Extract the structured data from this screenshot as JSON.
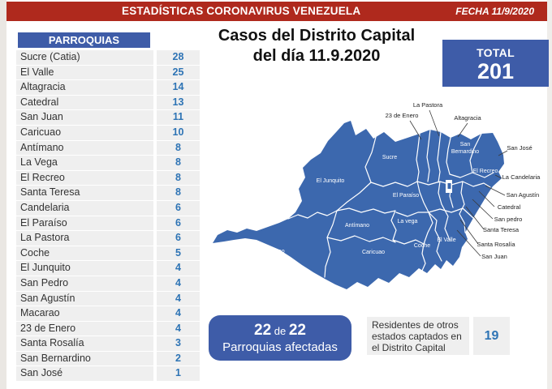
{
  "header": {
    "title": "ESTADÍSTICAS CORONAVIRUS VENEZUELA",
    "date": "FECHA 11/9/2020"
  },
  "table": {
    "header": "PARROQUIAS",
    "rows": [
      {
        "name": "Sucre (Catia)",
        "value": "28"
      },
      {
        "name": "El Valle",
        "value": "25"
      },
      {
        "name": "Altagracia",
        "value": "14"
      },
      {
        "name": "Catedral",
        "value": "13"
      },
      {
        "name": "San Juan",
        "value": "11"
      },
      {
        "name": "Caricuao",
        "value": "10"
      },
      {
        "name": "Antímano",
        "value": "8"
      },
      {
        "name": "La Vega",
        "value": "8"
      },
      {
        "name": "El Recreo",
        "value": "8"
      },
      {
        "name": "Santa Teresa",
        "value": "8"
      },
      {
        "name": "Candelaria",
        "value": "6"
      },
      {
        "name": "El Paraíso",
        "value": "6"
      },
      {
        "name": "La Pastora",
        "value": "6"
      },
      {
        "name": "Coche",
        "value": "5"
      },
      {
        "name": "El Junquito",
        "value": "4"
      },
      {
        "name": "San Pedro",
        "value": "4"
      },
      {
        "name": "San Agustín",
        "value": "4"
      },
      {
        "name": "Macarao",
        "value": "4"
      },
      {
        "name": "23 de Enero",
        "value": "4"
      },
      {
        "name": "Santa Rosalía",
        "value": "3"
      },
      {
        "name": "San Bernardino",
        "value": "2"
      },
      {
        "name": "San José",
        "value": "1"
      }
    ]
  },
  "main": {
    "title_line1": "Casos del Distrito Capital",
    "title_line2": "del día 11.9.2020",
    "total_label": "TOTAL",
    "total_value": "201"
  },
  "map": {
    "inside_labels": [
      "Sucre",
      "El Junquito",
      "El Paraíso",
      "Antímano",
      "La vega",
      "Macarao",
      "Caricuao",
      "Coche",
      "El Valle",
      "San Bernardino",
      "El Recreo"
    ],
    "outside_labels": [
      "La Pastora",
      "23 de Enero",
      "Altagracia",
      "San José",
      "La Candelaria",
      "San Agustín",
      "Catedral",
      "San pedro",
      "Santa Teresa",
      "Santa Rosalía",
      "San Juan"
    ]
  },
  "footer": {
    "affected_count": "22",
    "affected_of": "de",
    "affected_total": "22",
    "affected_caption": "Parroquias afectadas",
    "residents_text": "Residentes de otros estados captados en el Distrito Capital",
    "residents_value": "19"
  },
  "colors": {
    "red": "#AF291D",
    "blue": "#3E5CA8",
    "map_blue": "#3C68AE",
    "value_blue": "#2E74B5"
  }
}
